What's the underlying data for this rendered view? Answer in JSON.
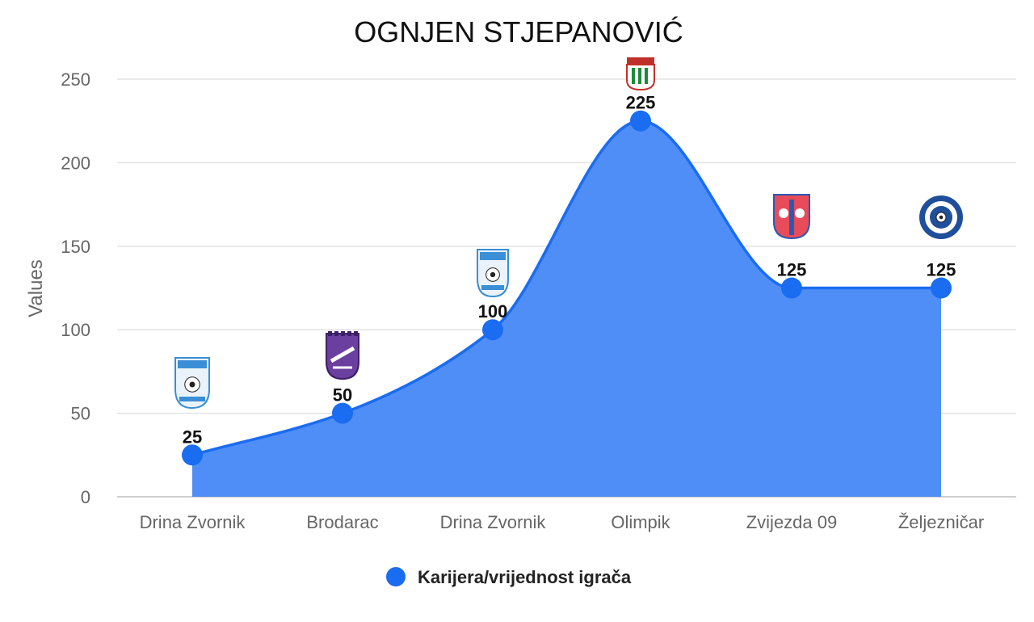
{
  "chart_data": {
    "type": "area",
    "title": "OGNJEN STJEPANOVIĆ",
    "ylabel": "Values",
    "xlabel": "",
    "ylim": [
      0,
      250
    ],
    "yticks": [
      0,
      50,
      100,
      150,
      200,
      250
    ],
    "categories": [
      "Drina Zvornik",
      "Brodarac",
      "Drina Zvornik",
      "Olimpik",
      "Zvijezda 09",
      "Željezničar"
    ],
    "series": [
      {
        "name": "Karijera/vrijednost igrača",
        "values": [
          25,
          50,
          100,
          225,
          125,
          125
        ],
        "color": "#1a6cf0",
        "fill": "#4f8ef7"
      }
    ],
    "club_logos": [
      "drina-zvornik-crest",
      "brodarac-crest",
      "drina-zvornik-crest",
      "olimpik-crest",
      "zvijezda-09-crest",
      "zeljeznicar-crest"
    ],
    "grid": true,
    "legend_position": "bottom"
  }
}
